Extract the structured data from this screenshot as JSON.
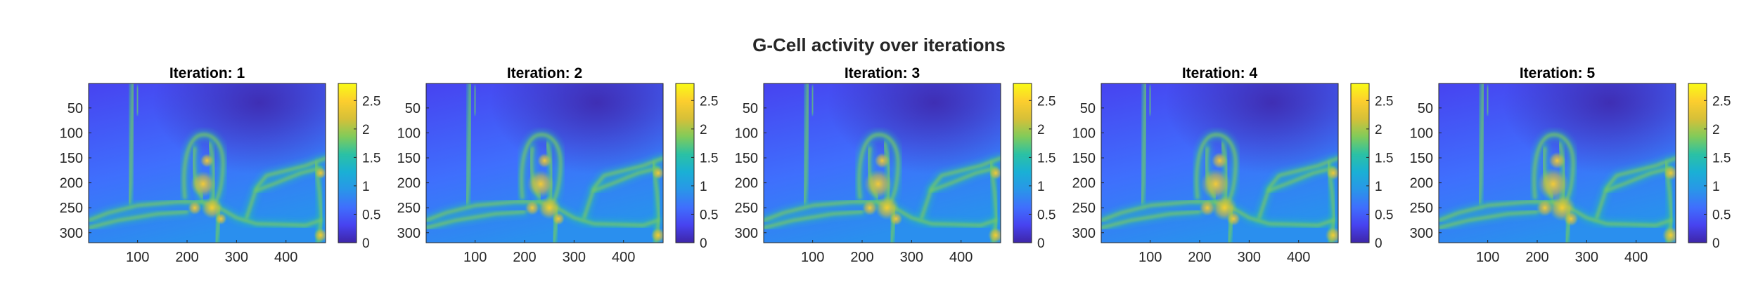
{
  "figure": {
    "title": "G-Cell activity over iterations"
  },
  "colors": {
    "colormap": "parula",
    "parula_stops": [
      "#3e26a8",
      "#4743f0",
      "#3f6ffd",
      "#2996e8",
      "#1ab0d5",
      "#2bc1a4",
      "#81cb5a",
      "#d6c038",
      "#fcce2e",
      "#f9fb15"
    ],
    "axis_line": "#262626"
  },
  "chart_data": [
    {
      "type": "heatmap",
      "title": "Iteration: 1",
      "x_ticks": [
        100,
        200,
        300,
        400
      ],
      "y_ticks": [
        50,
        100,
        150,
        200,
        250,
        300
      ],
      "xlim": [
        1,
        480
      ],
      "ylim": [
        1,
        320
      ],
      "y_reversed": true,
      "clim": [
        0,
        2.8
      ],
      "colorbar_ticks": [
        "0",
        "0.5",
        "1",
        "1.5",
        "2",
        "2.5"
      ],
      "colorbar_values": [
        0,
        0.5,
        1,
        1.5,
        2,
        2.5
      ]
    },
    {
      "type": "heatmap",
      "title": "Iteration: 2",
      "x_ticks": [
        100,
        200,
        300,
        400
      ],
      "y_ticks": [
        50,
        100,
        150,
        200,
        250,
        300
      ],
      "xlim": [
        1,
        480
      ],
      "ylim": [
        1,
        320
      ],
      "y_reversed": true,
      "clim": [
        0,
        2.8
      ],
      "colorbar_ticks": [
        "0",
        "0.5",
        "1",
        "1.5",
        "2",
        "2.5"
      ],
      "colorbar_values": [
        0,
        0.5,
        1,
        1.5,
        2,
        2.5
      ]
    },
    {
      "type": "heatmap",
      "title": "Iteration: 3",
      "x_ticks": [
        100,
        200,
        300,
        400
      ],
      "y_ticks": [
        50,
        100,
        150,
        200,
        250,
        300
      ],
      "xlim": [
        1,
        480
      ],
      "ylim": [
        1,
        320
      ],
      "y_reversed": true,
      "clim": [
        0,
        2.8
      ],
      "colorbar_ticks": [
        "0",
        "0.5",
        "1",
        "1.5",
        "2",
        "2.5"
      ],
      "colorbar_values": [
        0,
        0.5,
        1,
        1.5,
        2,
        2.5
      ]
    },
    {
      "type": "heatmap",
      "title": "Iteration: 4",
      "x_ticks": [
        100,
        200,
        300,
        400
      ],
      "y_ticks": [
        50,
        100,
        150,
        200,
        250,
        300
      ],
      "xlim": [
        1,
        480
      ],
      "ylim": [
        1,
        320
      ],
      "y_reversed": true,
      "clim": [
        0,
        2.8
      ],
      "colorbar_ticks": [
        "0",
        "0.5",
        "1",
        "1.5",
        "2",
        "2.5"
      ],
      "colorbar_values": [
        0,
        0.5,
        1,
        1.5,
        2,
        2.5
      ]
    },
    {
      "type": "heatmap",
      "title": "Iteration: 5",
      "x_ticks": [
        100,
        200,
        300,
        400
      ],
      "y_ticks": [
        50,
        100,
        150,
        200,
        250,
        300
      ],
      "xlim": [
        1,
        480
      ],
      "ylim": [
        1,
        320
      ],
      "y_reversed": true,
      "clim": [
        0,
        2.8
      ],
      "colorbar_ticks": [
        "0",
        "0.5",
        "1",
        "1.5",
        "2",
        "2.5"
      ],
      "colorbar_values": [
        0,
        0.5,
        1,
        1.5,
        2,
        2.5
      ]
    }
  ]
}
